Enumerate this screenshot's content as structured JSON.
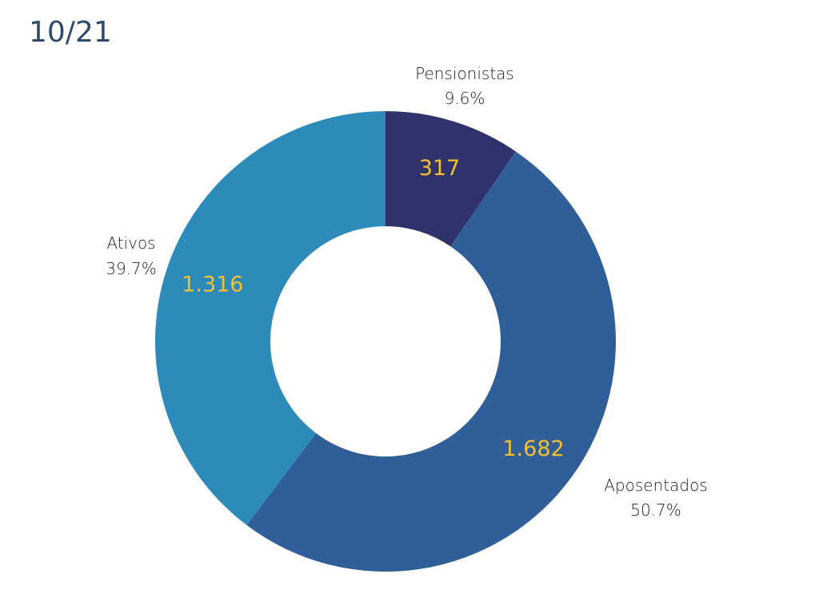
{
  "chart_data": {
    "type": "pie",
    "variant": "donut",
    "title": "10/21",
    "slices": [
      {
        "name": "Pensionistas",
        "value": 317,
        "value_label": "317",
        "percent_label": "9.6%",
        "color": "#30336b"
      },
      {
        "name": "Aposentados",
        "value": 1682,
        "value_label": "1.682",
        "percent_label": "50.7%",
        "color": "#2f5e98"
      },
      {
        "name": "Ativos",
        "value": 1316,
        "value_label": "1.316",
        "percent_label": "39.7%",
        "color": "#2d8bba"
      }
    ]
  }
}
